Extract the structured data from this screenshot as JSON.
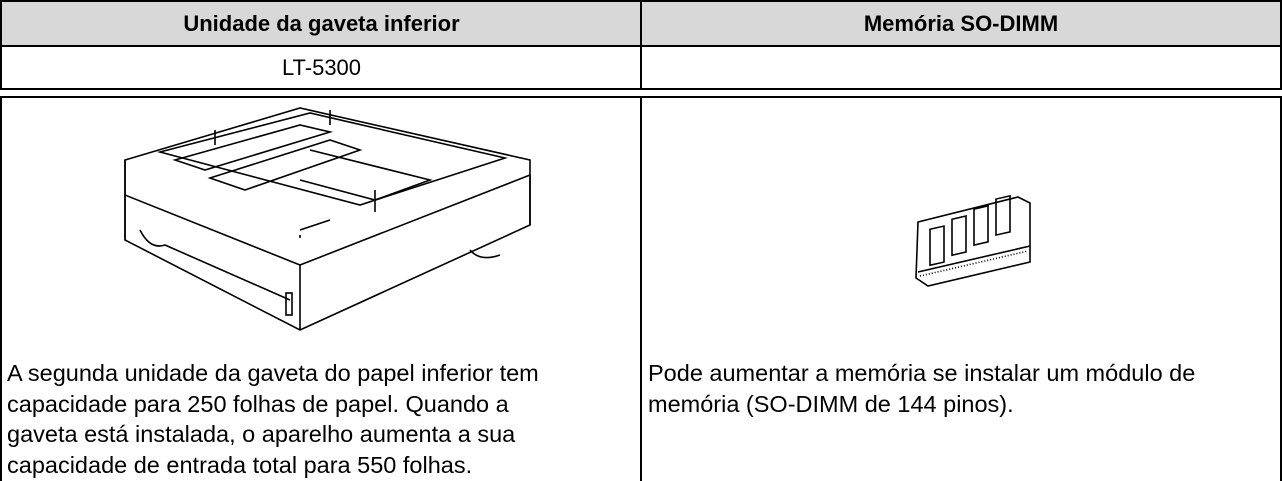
{
  "table": {
    "header": [
      "Unidade da gaveta inferior",
      "Memória SO-DIMM"
    ],
    "model": [
      "LT-5300"
    ],
    "descriptions": [
      [
        "A segunda unidade da gaveta do papel inferior tem",
        "capacidade para 250 folhas de papel. Quando a",
        "gaveta está instalada, o aparelho aumenta a sua",
        "capacidade de entrada total para 550 folhas."
      ],
      [
        "Pode aumentar a memória se instalar um módulo de",
        "memória (SO-DIMM de 144 pinos)."
      ]
    ]
  }
}
